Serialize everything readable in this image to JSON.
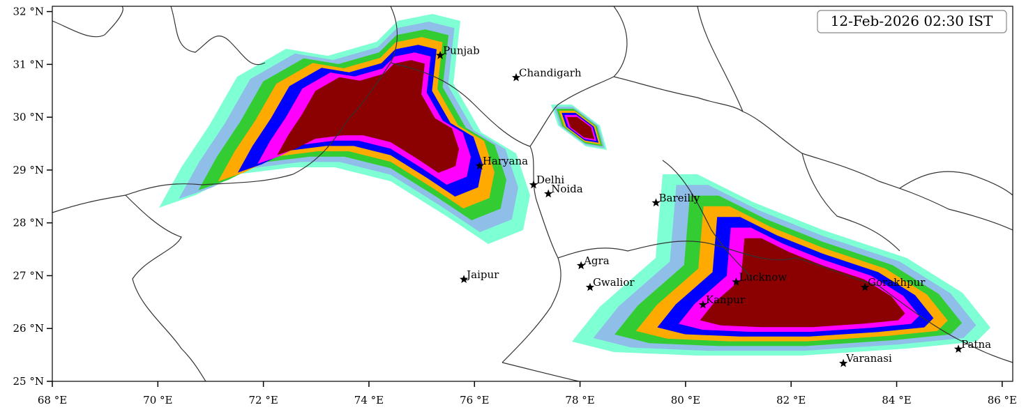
{
  "map": {
    "timestamp": "12-Feb-2026 02:30 IST",
    "xlim": [
      68,
      86.2
    ],
    "ylim": [
      25,
      32.1
    ],
    "xticks": [
      {
        "value": 68,
        "label": "68 °E"
      },
      {
        "value": 70,
        "label": "70 °E"
      },
      {
        "value": 72,
        "label": "72 °E"
      },
      {
        "value": 74,
        "label": "74 °E"
      },
      {
        "value": 76,
        "label": "76 °E"
      },
      {
        "value": 78,
        "label": "78 °E"
      },
      {
        "value": 80,
        "label": "80 °E"
      },
      {
        "value": 82,
        "label": "82 °E"
      },
      {
        "value": 84,
        "label": "84 °E"
      },
      {
        "value": 86,
        "label": "86 °E"
      }
    ],
    "yticks": [
      {
        "value": 25,
        "label": "25 °N"
      },
      {
        "value": 26,
        "label": "26 °N"
      },
      {
        "value": 27,
        "label": "27 °N"
      },
      {
        "value": 28,
        "label": "28 °N"
      },
      {
        "value": 29,
        "label": "29 °N"
      },
      {
        "value": 30,
        "label": "30 °N"
      },
      {
        "value": 31,
        "label": "31 °N"
      },
      {
        "value": 32,
        "label": "32 °N"
      }
    ],
    "cities": [
      {
        "name": "Punjab",
        "lon": 75.35,
        "lat": 31.17
      },
      {
        "name": "Chandigarh",
        "lon": 76.79,
        "lat": 30.75
      },
      {
        "name": "Haryana",
        "lon": 76.1,
        "lat": 29.08
      },
      {
        "name": "Delhi",
        "lon": 77.12,
        "lat": 28.72
      },
      {
        "name": "Noida",
        "lon": 77.4,
        "lat": 28.55
      },
      {
        "name": "Bareilly",
        "lon": 79.44,
        "lat": 28.38
      },
      {
        "name": "Agra",
        "lon": 78.02,
        "lat": 27.19
      },
      {
        "name": "Jaipur",
        "lon": 75.8,
        "lat": 26.93
      },
      {
        "name": "Gwalior",
        "lon": 78.19,
        "lat": 26.78
      },
      {
        "name": "Lucknow",
        "lon": 80.96,
        "lat": 26.88
      },
      {
        "name": "Gorakhpur",
        "lon": 83.4,
        "lat": 26.78
      },
      {
        "name": "Kanpur",
        "lon": 80.33,
        "lat": 26.45
      },
      {
        "name": "Patna",
        "lon": 85.17,
        "lat": 25.61
      },
      {
        "name": "Varanasi",
        "lon": 82.99,
        "lat": 25.34
      }
    ]
  }
}
